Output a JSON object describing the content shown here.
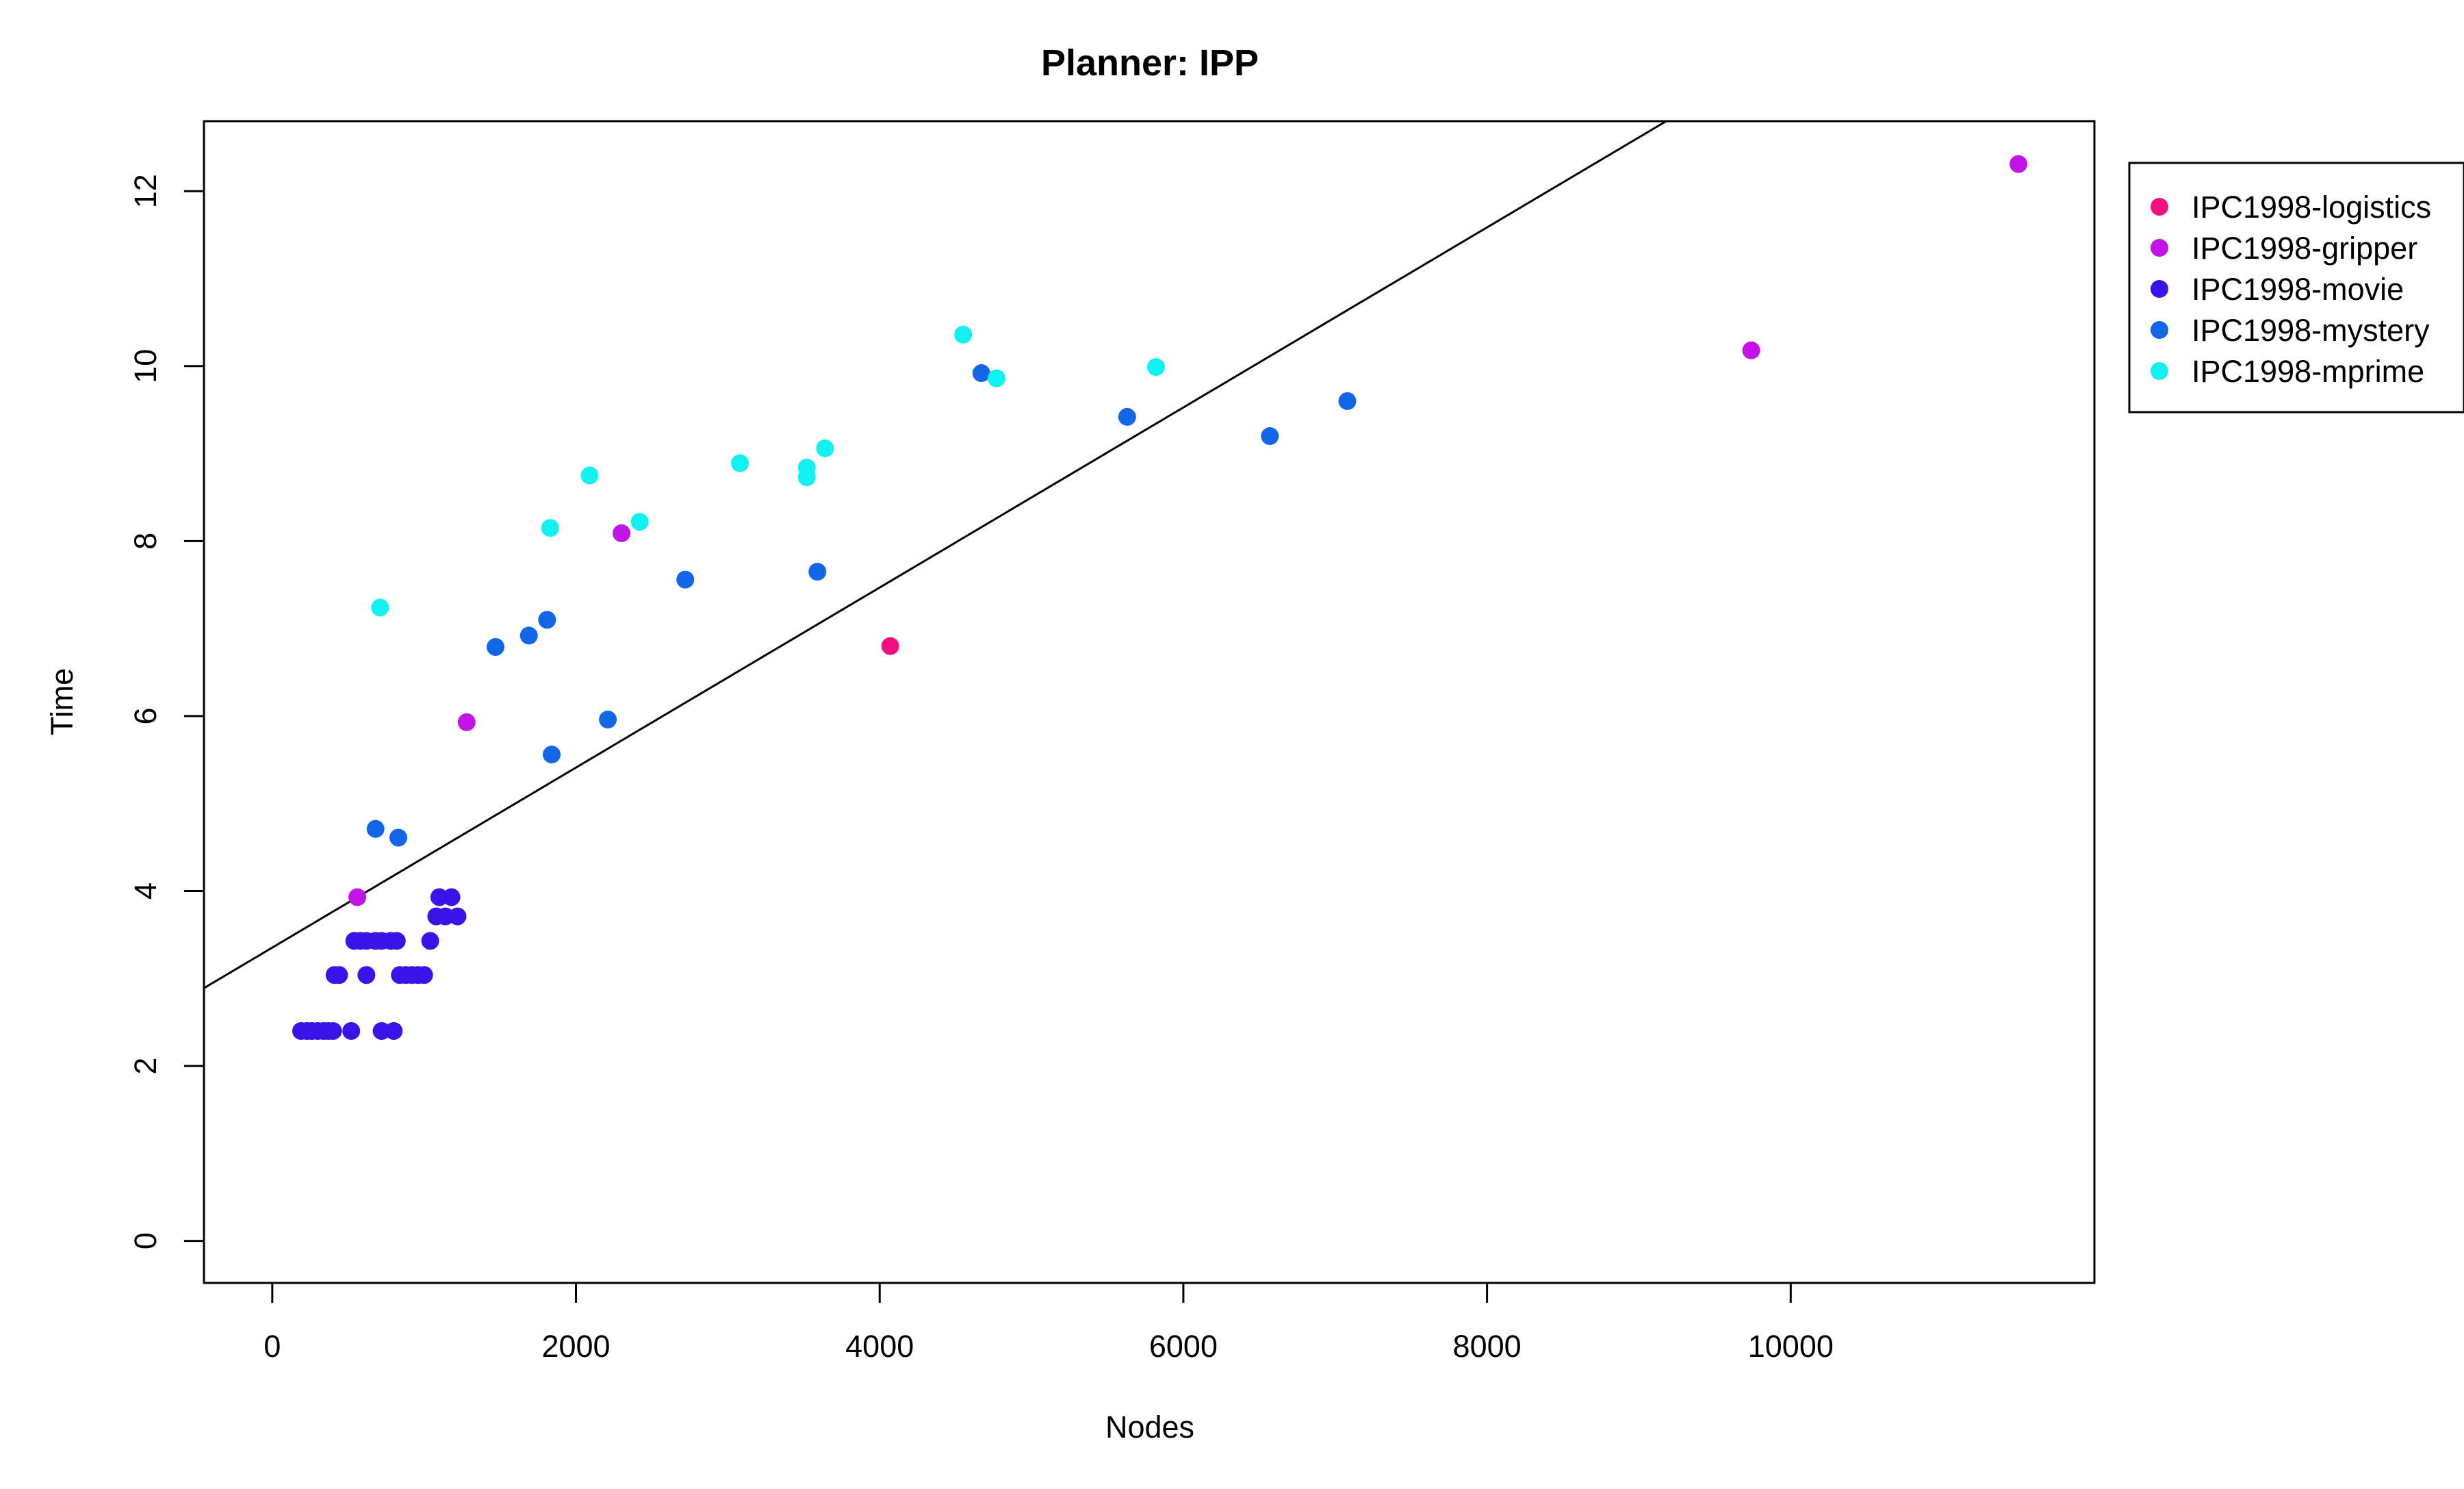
{
  "chart_data": {
    "type": "scatter",
    "title": "Planner: IPP",
    "xlabel": "Nodes",
    "ylabel": "Time",
    "xlim": [
      -450,
      12000
    ],
    "ylim": [
      -0.48,
      12.8
    ],
    "x_ticks": [
      0,
      2000,
      4000,
      6000,
      8000,
      10000
    ],
    "y_ticks": [
      0,
      2,
      4,
      6,
      8,
      10,
      12
    ],
    "x_tick_labels": [
      "0",
      "2000",
      "4000",
      "6000",
      "8000",
      "10000"
    ],
    "y_tick_labels": [
      "0",
      "2",
      "4",
      "6",
      "8",
      "10",
      "12"
    ],
    "grid": false,
    "legend_position": "right-top",
    "regression_line": {
      "x": [
        -450,
        9180
      ],
      "y": [
        2.89,
        12.8
      ]
    },
    "series": [
      {
        "name": "IPC1998-logistics",
        "color": "#F20F7F",
        "points": [
          [
            4070,
            6.8
          ]
        ]
      },
      {
        "name": "IPC1998-gripper",
        "color": "#C313E8",
        "points": [
          [
            560,
            3.93
          ],
          [
            1280,
            5.93
          ],
          [
            2300,
            8.09
          ],
          [
            9740,
            10.18
          ],
          [
            11500,
            12.31
          ]
        ]
      },
      {
        "name": "IPC1998-movie",
        "color": "#3A13E8",
        "points": [
          [
            190,
            2.4
          ],
          [
            230,
            2.4
          ],
          [
            260,
            2.4
          ],
          [
            300,
            2.4
          ],
          [
            340,
            2.4
          ],
          [
            370,
            2.4
          ],
          [
            400,
            2.4
          ],
          [
            520,
            2.4
          ],
          [
            720,
            2.4
          ],
          [
            800,
            2.4
          ],
          [
            410,
            3.04
          ],
          [
            440,
            3.04
          ],
          [
            620,
            3.04
          ],
          [
            840,
            3.04
          ],
          [
            880,
            3.04
          ],
          [
            920,
            3.04
          ],
          [
            960,
            3.04
          ],
          [
            1000,
            3.04
          ],
          [
            540,
            3.43
          ],
          [
            580,
            3.43
          ],
          [
            620,
            3.43
          ],
          [
            680,
            3.43
          ],
          [
            720,
            3.43
          ],
          [
            780,
            3.43
          ],
          [
            820,
            3.43
          ],
          [
            1040,
            3.43
          ],
          [
            1080,
            3.71
          ],
          [
            1140,
            3.71
          ],
          [
            1220,
            3.71
          ],
          [
            1100,
            3.93
          ],
          [
            1180,
            3.93
          ]
        ]
      },
      {
        "name": "IPC1998-mystery",
        "color": "#1366E8",
        "points": [
          [
            680,
            4.71
          ],
          [
            830,
            4.61
          ],
          [
            1470,
            6.79
          ],
          [
            1690,
            6.92
          ],
          [
            1810,
            7.1
          ],
          [
            1840,
            5.56
          ],
          [
            2210,
            5.96
          ],
          [
            2720,
            7.56
          ],
          [
            3590,
            7.65
          ],
          [
            4670,
            9.92
          ],
          [
            5630,
            9.42
          ],
          [
            6570,
            9.2
          ],
          [
            7080,
            9.6
          ]
        ]
      },
      {
        "name": "IPC1998-mprime",
        "color": "#13F0F2",
        "points": [
          [
            710,
            7.24
          ],
          [
            1830,
            8.15
          ],
          [
            2090,
            8.75
          ],
          [
            2420,
            8.22
          ],
          [
            3080,
            8.89
          ],
          [
            3520,
            8.84
          ],
          [
            3520,
            8.73
          ],
          [
            3640,
            9.06
          ],
          [
            4550,
            10.36
          ],
          [
            4770,
            9.86
          ],
          [
            5820,
            9.99
          ]
        ]
      }
    ]
  }
}
